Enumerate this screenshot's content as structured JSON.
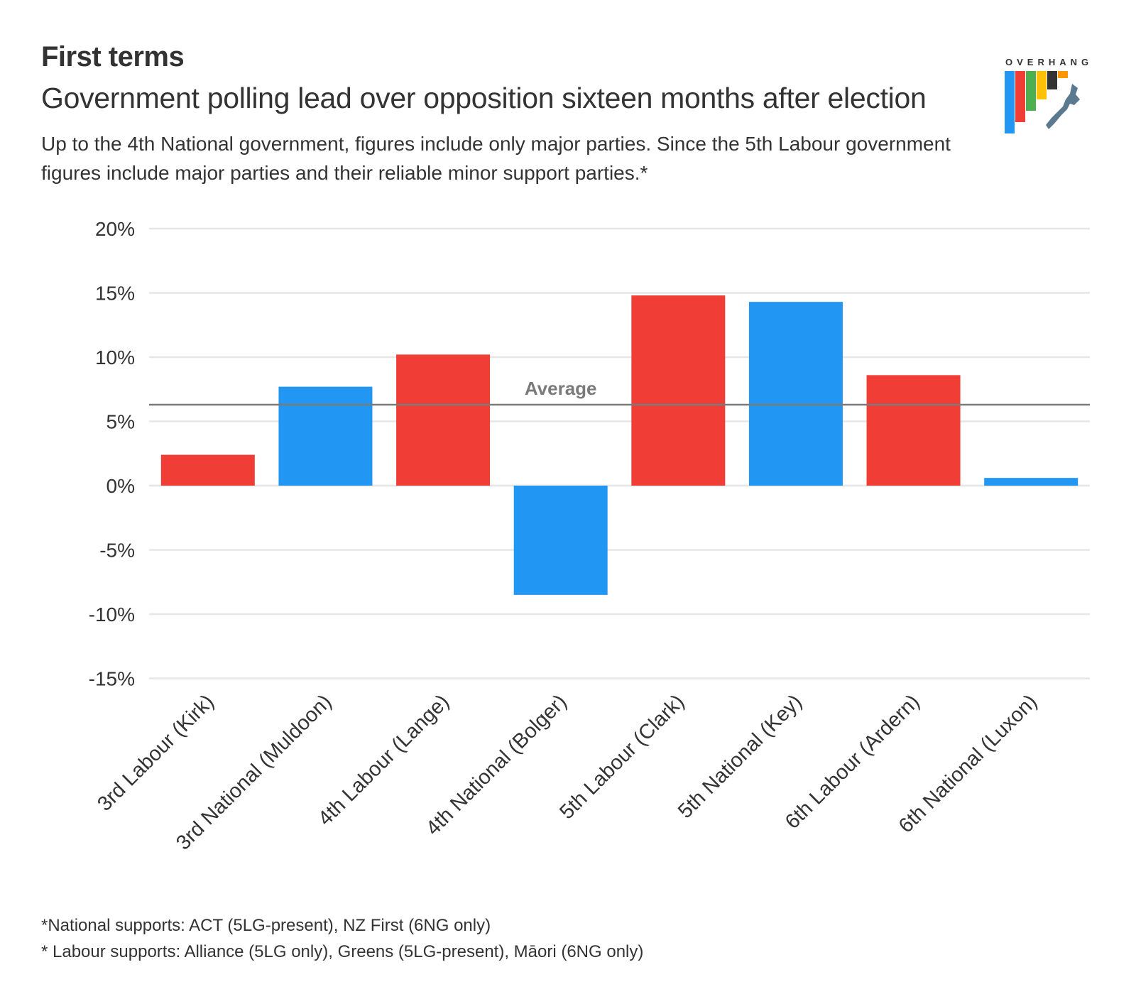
{
  "title": "First terms",
  "subtitle": "Government polling lead over opposition sixteen months after election",
  "description": "Up to the 4th National government, figures include only major parties. Since the 5th Labour government figures include major parties and their reliable minor support parties.*",
  "logo": {
    "text": "OVERHANG",
    "name": "the-overhang-logo"
  },
  "colors": {
    "labour": "#f03e36",
    "national": "#2196f3",
    "grid": "#e6e6e6",
    "average_line": "#7a7a7a",
    "text": "#333333"
  },
  "chart_data": {
    "type": "bar",
    "categories": [
      "3rd Labour (Kirk)",
      "3rd National (Muldoon)",
      "4th Labour (Lange)",
      "4th National (Bolger)",
      "5th Labour (Clark)",
      "5th National (Key)",
      "6th Labour (Ardern)",
      "6th National (Luxon)"
    ],
    "values": [
      2.4,
      7.7,
      10.2,
      -8.5,
      14.8,
      14.3,
      8.6,
      0.6
    ],
    "parties": [
      "labour",
      "national",
      "labour",
      "national",
      "labour",
      "national",
      "labour",
      "national"
    ],
    "average": 6.3,
    "average_label": "Average",
    "ylim": [
      -15,
      20
    ],
    "yticks": [
      20,
      15,
      10,
      5,
      0,
      -5,
      -10,
      -15
    ],
    "ytick_labels": [
      "20%",
      "15%",
      "10%",
      "5%",
      "0%",
      "-5%",
      "-10%",
      "-15%"
    ],
    "grid": true
  },
  "footnotes": [
    "*National supports: ACT (5LG-present), NZ First (6NG only)",
    "* Labour supports: Alliance (5LG only), Greens (5LG-present), Māori (6NG only)"
  ]
}
